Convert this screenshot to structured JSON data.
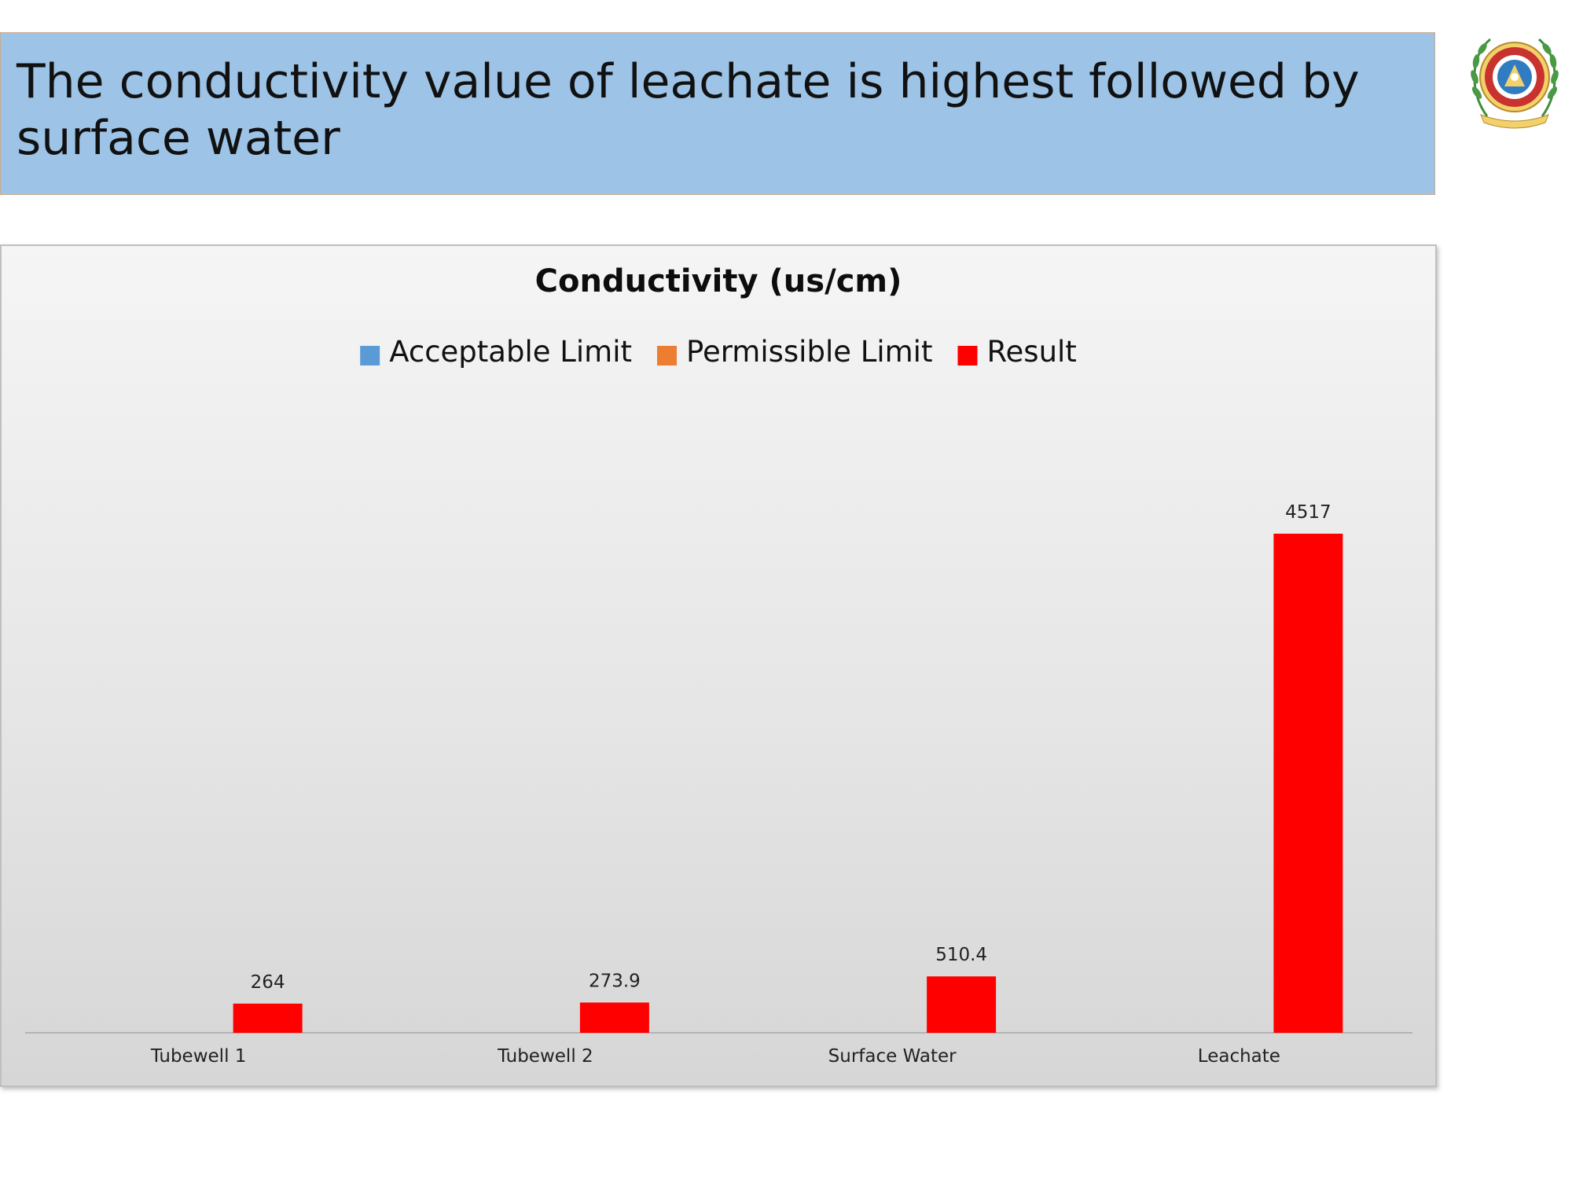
{
  "slide": {
    "title": "The conductivity value of leachate is highest followed by surface water",
    "logo_icon": "institution-emblem-icon"
  },
  "chart_data": {
    "type": "bar",
    "title": "Conductivity (us/cm)",
    "xlabel": "",
    "ylabel": "",
    "categories": [
      "Tubewell 1",
      "Tubewell 2",
      "Surface Water",
      "Leachate"
    ],
    "series": [
      {
        "name": "Acceptable Limit",
        "color": "#5b9bd5",
        "values": [
          null,
          null,
          null,
          null
        ]
      },
      {
        "name": "Permissible Limit",
        "color": "#ed7d31",
        "values": [
          null,
          null,
          null,
          null
        ]
      },
      {
        "name": "Result",
        "color": "#ff0000",
        "values": [
          264,
          273.9,
          510.4,
          4517
        ]
      }
    ],
    "data_labels": [
      "264",
      "273.9",
      "510.4",
      "4517"
    ],
    "ylim": [
      0,
      5000
    ],
    "grid": false,
    "legend_position": "top"
  }
}
